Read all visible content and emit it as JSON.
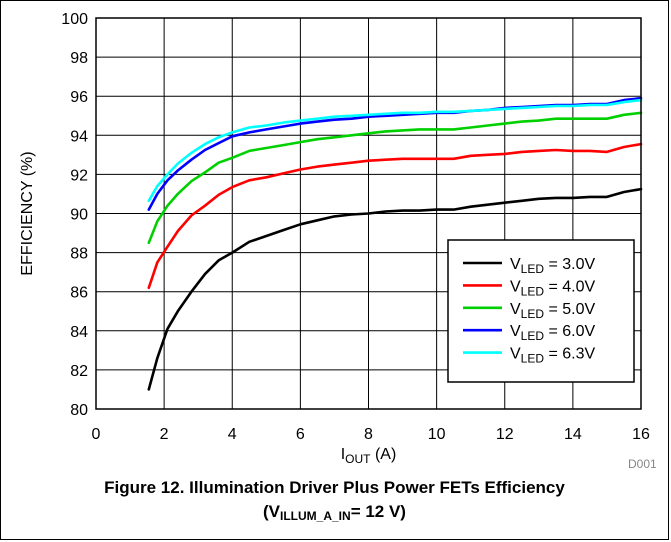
{
  "chart_data": {
    "type": "line",
    "xlabel": {
      "main": "I",
      "sub": "OUT",
      "rest": " (A)"
    },
    "ylabel": "EFFICIENCY (%)",
    "xlim": [
      0,
      16
    ],
    "ylim": [
      80,
      100
    ],
    "xticks": [
      0,
      2,
      4,
      6,
      8,
      10,
      12,
      14,
      16
    ],
    "yticks": [
      80,
      82,
      84,
      86,
      88,
      90,
      92,
      94,
      96,
      98,
      100
    ],
    "grid": true,
    "legend_position": "bottom-right",
    "series": [
      {
        "name": "V_LED = 3.0V",
        "label_main": "V",
        "label_sub": "LED",
        "label_rest": " = 3.0V",
        "color": "#000000",
        "x": [
          1.55,
          1.8,
          2.1,
          2.4,
          2.8,
          3.2,
          3.6,
          4.0,
          4.5,
          5.0,
          5.5,
          6.0,
          6.5,
          7.0,
          7.5,
          8.0,
          8.5,
          9.0,
          9.5,
          10.0,
          10.5,
          11.0,
          11.5,
          12.0,
          12.5,
          13.0,
          13.5,
          14.0,
          14.5,
          15.0,
          15.5,
          16.0
        ],
        "y": [
          81.0,
          82.6,
          84.1,
          85.0,
          86.0,
          86.9,
          87.6,
          88.0,
          88.55,
          88.85,
          89.15,
          89.45,
          89.65,
          89.85,
          89.95,
          90.0,
          90.1,
          90.15,
          90.15,
          90.2,
          90.2,
          90.35,
          90.45,
          90.55,
          90.65,
          90.75,
          90.8,
          90.8,
          90.85,
          90.85,
          91.1,
          91.25
        ]
      },
      {
        "name": "V_LED = 4.0V",
        "label_main": "V",
        "label_sub": "LED",
        "label_rest": " = 4.0V",
        "color": "#ff0000",
        "x": [
          1.55,
          1.8,
          2.1,
          2.4,
          2.8,
          3.2,
          3.6,
          4.0,
          4.5,
          5.0,
          5.5,
          6.0,
          6.5,
          7.0,
          7.5,
          8.0,
          8.5,
          9.0,
          9.5,
          10.0,
          10.5,
          11.0,
          11.5,
          12.0,
          12.5,
          13.0,
          13.5,
          14.0,
          14.5,
          15.0,
          15.5,
          16.0
        ],
        "y": [
          86.2,
          87.5,
          88.3,
          89.1,
          89.9,
          90.4,
          90.95,
          91.35,
          91.7,
          91.85,
          92.05,
          92.25,
          92.4,
          92.5,
          92.6,
          92.7,
          92.75,
          92.8,
          92.8,
          92.8,
          92.8,
          92.95,
          93.0,
          93.05,
          93.15,
          93.2,
          93.25,
          93.2,
          93.2,
          93.15,
          93.4,
          93.55
        ]
      },
      {
        "name": "V_LED = 5.0V",
        "label_main": "V",
        "label_sub": "LED",
        "label_rest": " = 5.0V",
        "color": "#00d000",
        "x": [
          1.55,
          1.8,
          2.1,
          2.4,
          2.8,
          3.2,
          3.6,
          4.0,
          4.5,
          5.0,
          5.5,
          6.0,
          6.5,
          7.0,
          7.5,
          8.0,
          8.5,
          9.0,
          9.5,
          10.0,
          10.5,
          11.0,
          11.5,
          12.0,
          12.5,
          13.0,
          13.5,
          14.0,
          14.5,
          15.0,
          15.5,
          16.0
        ],
        "y": [
          88.5,
          89.6,
          90.4,
          91.0,
          91.65,
          92.1,
          92.6,
          92.85,
          93.2,
          93.35,
          93.5,
          93.65,
          93.8,
          93.9,
          94.0,
          94.1,
          94.2,
          94.25,
          94.3,
          94.3,
          94.3,
          94.4,
          94.5,
          94.6,
          94.7,
          94.75,
          94.85,
          94.85,
          94.85,
          94.85,
          95.05,
          95.15
        ]
      },
      {
        "name": "V_LED = 6.0V",
        "label_main": "V",
        "label_sub": "LED",
        "label_rest": " = 6.0V",
        "color": "#0000ff",
        "x": [
          1.55,
          1.8,
          2.1,
          2.4,
          2.8,
          3.2,
          3.6,
          4.0,
          4.5,
          5.0,
          5.5,
          6.0,
          6.5,
          7.0,
          7.5,
          8.0,
          8.5,
          9.0,
          9.5,
          10.0,
          10.5,
          11.0,
          11.5,
          12.0,
          12.5,
          13.0,
          13.5,
          14.0,
          14.5,
          15.0,
          15.5,
          16.0
        ],
        "y": [
          90.2,
          91.0,
          91.7,
          92.2,
          92.75,
          93.25,
          93.6,
          93.95,
          94.15,
          94.3,
          94.45,
          94.6,
          94.7,
          94.8,
          94.85,
          94.95,
          95.0,
          95.05,
          95.1,
          95.15,
          95.15,
          95.25,
          95.3,
          95.4,
          95.45,
          95.5,
          95.55,
          95.55,
          95.6,
          95.6,
          95.8,
          95.9
        ]
      },
      {
        "name": "V_LED = 6.3V",
        "label_main": "V",
        "label_sub": "LED",
        "label_rest": " = 6.3V",
        "color": "#00ffff",
        "x": [
          1.55,
          1.8,
          2.1,
          2.4,
          2.8,
          3.2,
          3.6,
          4.0,
          4.5,
          5.0,
          5.5,
          6.0,
          6.5,
          7.0,
          7.5,
          8.0,
          8.5,
          9.0,
          9.5,
          10.0,
          10.5,
          11.0,
          11.5,
          12.0,
          12.5,
          13.0,
          13.5,
          14.0,
          14.5,
          15.0,
          15.5,
          16.0
        ],
        "y": [
          90.65,
          91.4,
          92.0,
          92.55,
          93.1,
          93.55,
          93.9,
          94.15,
          94.4,
          94.5,
          94.65,
          94.75,
          94.85,
          94.95,
          95.0,
          95.05,
          95.1,
          95.15,
          95.15,
          95.2,
          95.2,
          95.25,
          95.3,
          95.35,
          95.4,
          95.45,
          95.5,
          95.5,
          95.55,
          95.55,
          95.7,
          95.8
        ]
      }
    ]
  },
  "figure_id": "D001",
  "caption": {
    "line1": "Figure 12. Illumination Driver Plus Power FETs Efficiency",
    "line2_open": "(V",
    "line2_sub": "ILLUM_A_IN",
    "line2_rest": "= 12 V)"
  }
}
